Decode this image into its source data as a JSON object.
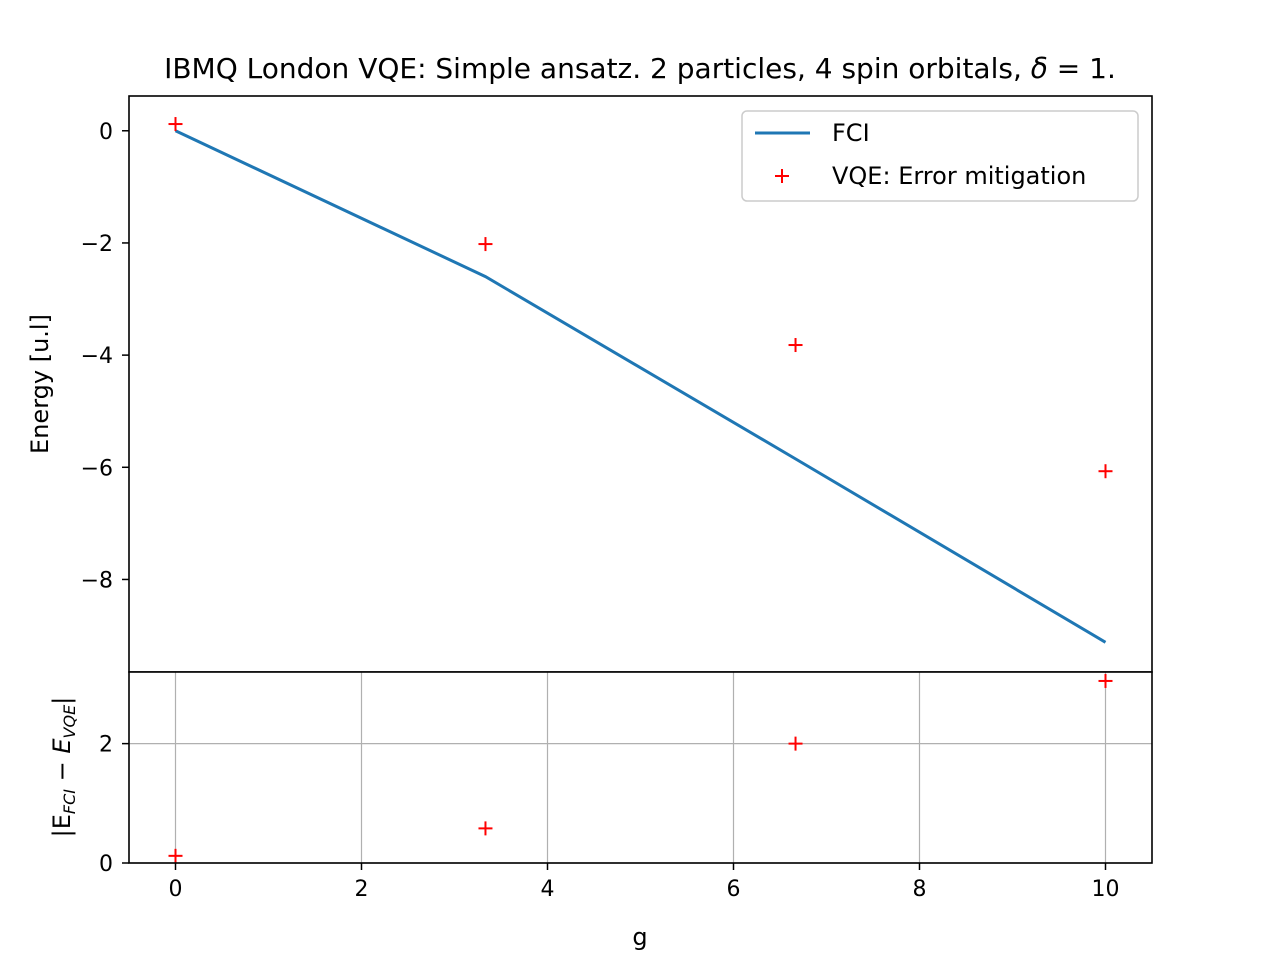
{
  "chart_data": [
    {
      "type": "line",
      "title": "IBMQ London VQE: Simple ansatz. 2 particles, 4 spin orbitals, δ = 1.",
      "title_parts": {
        "main": "IBMQ London VQE: Simple ansatz. 2 particles, 4 spin orbitals, ",
        "symbol": "δ",
        "tail": " = 1."
      },
      "ylabel": "Energy [u.l]",
      "ylim": [
        -9.65,
        0.62
      ],
      "yticks": [
        0,
        -2,
        -4,
        -6,
        -8
      ],
      "ytick_labels": [
        "0",
        "−2",
        "−4",
        "−6",
        "−8"
      ],
      "xlim": [
        -0.5,
        10.5
      ],
      "grid": false,
      "legend_position": "upper right",
      "series": [
        {
          "name": "FCI",
          "style": "line",
          "color": "#1f77b4",
          "x": [
            0,
            3.333,
            6.667,
            10
          ],
          "y": [
            0.0,
            -2.6,
            -5.85,
            -9.12
          ]
        },
        {
          "name": "VQE: Error mitigation",
          "style": "marker-plus",
          "color": "#ff0000",
          "x": [
            0,
            3.333,
            6.667,
            10
          ],
          "y": [
            0.12,
            -2.02,
            -3.82,
            -6.07
          ]
        }
      ]
    },
    {
      "type": "scatter",
      "ylabel": "|E_FCI − E_VQE|",
      "ylabel_parts": {
        "left": "|E",
        "sub1": "FCI",
        "mid": " − E",
        "sub2": "VQE",
        "right": "|"
      },
      "xlabel": "g",
      "xlim": [
        -0.5,
        10.5
      ],
      "ylim": [
        0,
        3.2
      ],
      "xticks": [
        0,
        2,
        4,
        6,
        8,
        10
      ],
      "xtick_labels": [
        "0",
        "2",
        "4",
        "6",
        "8",
        "10"
      ],
      "yticks": [
        0,
        2
      ],
      "ytick_labels": [
        "0",
        "2"
      ],
      "grid": true,
      "series": [
        {
          "name": "",
          "style": "marker-plus",
          "color": "#ff0000",
          "x": [
            0,
            3.333,
            6.667,
            10
          ],
          "y": [
            0.12,
            0.58,
            2.0,
            3.05
          ]
        }
      ]
    }
  ]
}
